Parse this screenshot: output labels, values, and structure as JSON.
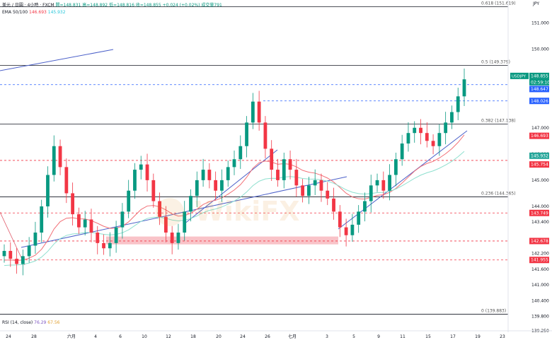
{
  "header": {
    "symbol_line": "美元 / 日圓 · 4小時 · FXCM",
    "open": "開=148.831",
    "high": "高=148.892",
    "low": "低=148.816",
    "close": "收=148.855",
    "change": "+0.024 (+0.02%)",
    "volume": "成交量791",
    "ema_label": "EMA 50/100",
    "ema50": "146.693",
    "ema100": "145.932",
    "rsi_label": "RSI (14, close)",
    "rsi_value": "76.29",
    "rsi_ma": "67.56"
  },
  "currency": "JPY",
  "colors": {
    "up": "#089981",
    "down": "#f23645",
    "ema50": "#f27077",
    "ema100": "#8ee0cf",
    "trendline": "#4b60c9",
    "fib": "#131722",
    "last": "#2962ff",
    "zone": "#f8b4ba"
  },
  "chart_data": {
    "type": "candlestick",
    "symbol": "USDJPY",
    "price_axis": {
      "min": 139.25,
      "max": 151.5,
      "ticks": [
        "151.000",
        "150.000",
        "149.000",
        "148.000",
        "147.000",
        "146.000",
        "145.000",
        "144.000",
        "143.400",
        "142.200",
        "141.600",
        "141.000",
        "140.400",
        "139.800",
        "139.250"
      ]
    },
    "time_axis": {
      "ticks": [
        "24",
        "28",
        "六月",
        "4",
        "6",
        "10",
        "12",
        "18",
        "20",
        "24",
        "26",
        "七月",
        "3",
        "5",
        "9",
        "11",
        "15",
        "17",
        "19",
        "23"
      ]
    },
    "price_tags": [
      {
        "label": "USDJPY",
        "value": "148.855",
        "color": "#089981"
      },
      {
        "label": "",
        "value": "02:59:10",
        "color": "#089981"
      },
      {
        "label": "",
        "value": "148.647",
        "color": "#2962ff"
      },
      {
        "label": "",
        "value": "148.026",
        "color": "#2962ff"
      },
      {
        "label": "",
        "value": "146.693",
        "color": "#f23645"
      },
      {
        "label": "",
        "value": "145.932",
        "color": "#26a69a"
      },
      {
        "label": "",
        "value": "145.754",
        "color": "#f23645"
      },
      {
        "label": "",
        "value": "143.749",
        "color": "#f23645"
      },
      {
        "label": "",
        "value": "142.678",
        "color": "#f23645"
      },
      {
        "label": "",
        "value": "141.955",
        "color": "#f23645"
      }
    ],
    "fib_levels": [
      {
        "ratio": "0.618",
        "label": "0.618 (151.619)",
        "value": 151.619
      },
      {
        "ratio": "0.5",
        "label": "0.5 (149.379)",
        "value": 149.379
      },
      {
        "ratio": "0.382",
        "label": "0.382 (147.138)",
        "value": 147.138
      },
      {
        "ratio": "0.236",
        "label": "0.236 (144.365)",
        "value": 144.365
      },
      {
        "ratio": "0",
        "label": "0 (139.883)",
        "value": 139.883
      }
    ],
    "dashed_levels": [
      148.647,
      148.026,
      145.754,
      143.749,
      142.678,
      141.955
    ],
    "close_path": [
      142.3,
      142.0,
      141.8,
      142.1,
      142.5,
      143.0,
      144.0,
      145.2,
      146.3,
      145.5,
      144.5,
      143.7,
      143.2,
      143.5,
      143.0,
      142.6,
      142.4,
      142.6,
      143.2,
      143.8,
      144.6,
      145.4,
      145.6,
      145.0,
      144.2,
      143.6,
      143.0,
      142.6,
      143.0,
      143.8,
      144.4,
      145.0,
      145.4,
      145.0,
      144.6,
      145.0,
      145.5,
      145.8,
      146.3,
      147.2,
      148.0,
      147.2,
      146.2,
      145.4,
      145.0,
      145.8,
      145.4,
      144.8,
      144.4,
      144.8,
      145.0,
      144.6,
      144.3,
      143.8,
      143.2,
      142.9,
      143.3,
      143.8,
      144.2,
      144.8,
      145.0,
      144.6,
      145.2,
      145.8,
      146.4,
      146.8,
      147.0,
      146.8,
      146.5,
      146.3,
      146.8,
      147.2,
      147.6,
      148.2,
      148.85
    ]
  }
}
